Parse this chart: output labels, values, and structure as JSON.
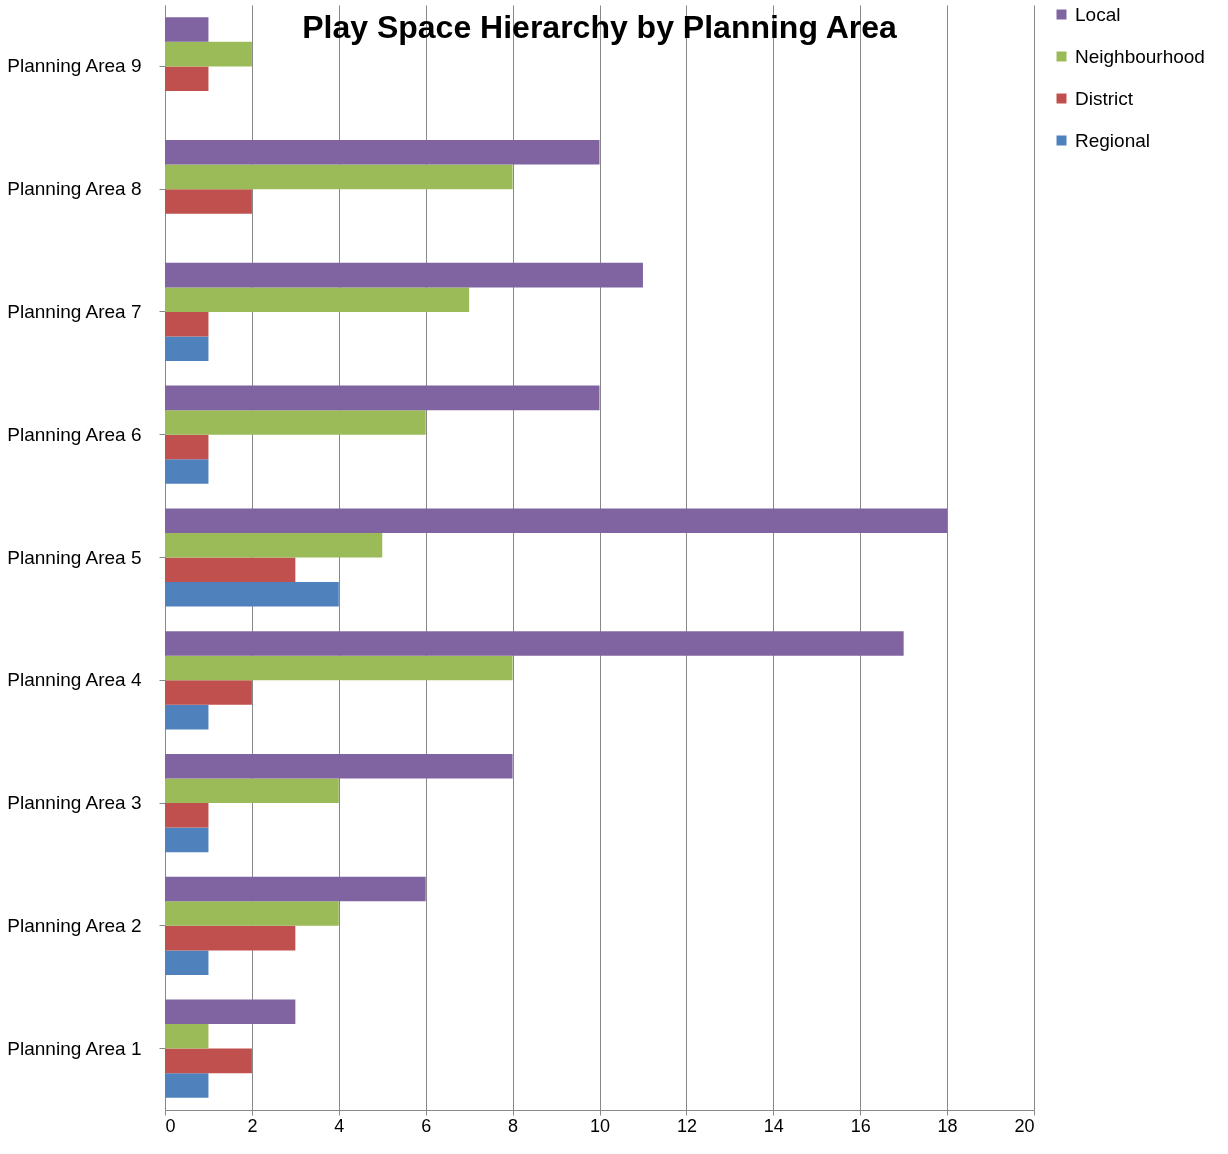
{
  "chart_data": {
    "type": "bar",
    "orientation": "horizontal",
    "title": "Play Space Hierarchy by Planning Area",
    "categories": [
      "Planning Area 9",
      "Planning Area 8",
      "Planning Area 7",
      "Planning Area 6",
      "Planning Area 5",
      "Planning Area 4",
      "Planning Area 3",
      "Planning Area 2",
      "Planning Area 1"
    ],
    "series": [
      {
        "name": "Regional",
        "color": "#4f81bd",
        "values": [
          0,
          0,
          1,
          1,
          4,
          1,
          1,
          1,
          1
        ]
      },
      {
        "name": "District",
        "color": "#c0504d",
        "values": [
          1,
          2,
          1,
          1,
          3,
          2,
          1,
          3,
          2
        ]
      },
      {
        "name": "Neighbourhood",
        "color": "#9bbb59",
        "values": [
          2,
          8,
          7,
          6,
          5,
          8,
          4,
          4,
          1
        ]
      },
      {
        "name": "Local",
        "color": "#8064a2",
        "values": [
          1,
          10,
          11,
          10,
          18,
          17,
          8,
          6,
          3
        ]
      }
    ],
    "xlim": [
      0,
      20
    ],
    "xticks": [
      0,
      2,
      4,
      6,
      8,
      10,
      12,
      14,
      16,
      18,
      20
    ],
    "grid": "x",
    "legend": "right"
  }
}
